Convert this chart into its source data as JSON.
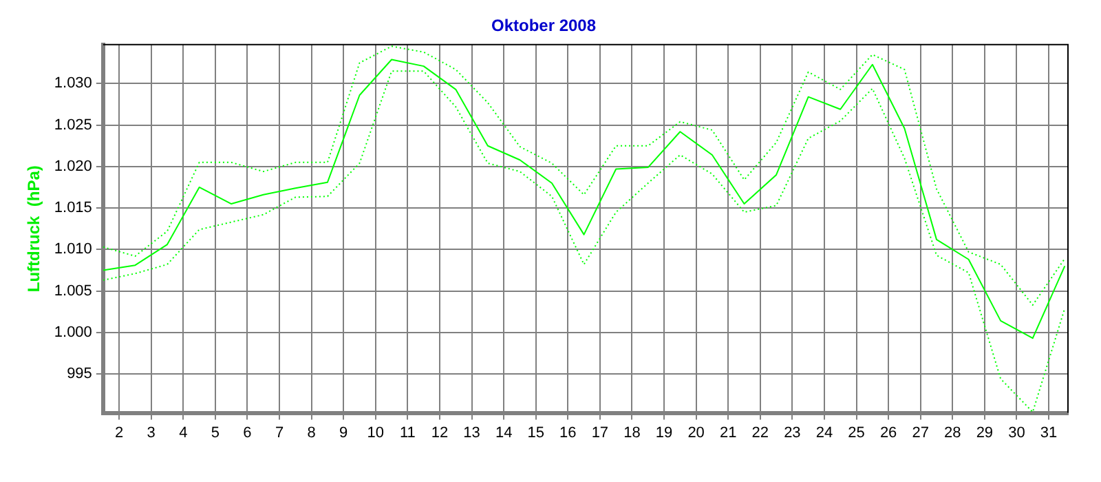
{
  "chart_data": {
    "type": "line",
    "title": "Oktober 2008",
    "ylabel": "Luftdruck  (hPa)",
    "x": [
      1.5,
      2.5,
      3.5,
      4.5,
      5.5,
      6.5,
      7.5,
      8.5,
      9.5,
      10.5,
      11.5,
      12.5,
      13.5,
      14.5,
      15.5,
      16.5,
      17.5,
      18.5,
      19.5,
      20.5,
      21.5,
      22.5,
      23.5,
      24.5,
      25.5,
      26.5,
      27.5,
      28.5,
      29.5,
      30.5,
      31.5
    ],
    "series": [
      {
        "color": "#00ff00",
        "line_style": "solid",
        "values": [
          1007.5,
          1008.1,
          1010.6,
          1017.5,
          1015.5,
          1016.6,
          1017.4,
          1018.1,
          1028.6,
          1032.9,
          1032.1,
          1029.3,
          1022.5,
          1020.8,
          1018.0,
          1011.8,
          1019.7,
          1019.9,
          1024.2,
          1021.4,
          1015.5,
          1019.0,
          1028.4,
          1026.9,
          1032.3,
          1024.6,
          1011.2,
          1008.8,
          1001.4,
          999.3,
          1008.0
        ]
      },
      {
        "color": "#00ff00",
        "line_style": "dotted",
        "values": [
          1010.3,
          1009.2,
          1012.2,
          1020.5,
          1020.5,
          1019.4,
          1020.5,
          1020.5,
          1032.5,
          1034.5,
          1033.8,
          1031.7,
          1027.7,
          1022.4,
          1020.4,
          1016.6,
          1022.5,
          1022.5,
          1025.4,
          1024.4,
          1018.4,
          1022.9,
          1031.4,
          1029.3,
          1033.5,
          1031.7,
          1017.3,
          1009.7,
          1008.2,
          1003.3,
          1008.9
        ]
      },
      {
        "color": "#00ff00",
        "line_style": "dotted",
        "values": [
          1006.3,
          1007.1,
          1008.2,
          1012.4,
          1013.3,
          1014.2,
          1016.3,
          1016.4,
          1020.4,
          1031.5,
          1031.5,
          1027.2,
          1020.4,
          1019.4,
          1016.4,
          1008.2,
          1014.5,
          1018.0,
          1021.4,
          1019.1,
          1014.5,
          1015.3,
          1023.4,
          1025.5,
          1029.4,
          1021.0,
          1009.3,
          1007.2,
          994.4,
          990.4,
          1002.9
        ]
      }
    ],
    "xlim": [
      1.5,
      31.6
    ],
    "xticks": [
      2,
      3,
      4,
      5,
      6,
      7,
      8,
      9,
      10,
      11,
      12,
      13,
      14,
      15,
      16,
      17,
      18,
      19,
      20,
      21,
      22,
      23,
      24,
      25,
      26,
      27,
      28,
      29,
      30,
      31
    ],
    "ylim": [
      990.3,
      1034.7
    ],
    "yticks": [
      {
        "value": 995,
        "label": "995"
      },
      {
        "value": 1000,
        "label": "1.000"
      },
      {
        "value": 1005,
        "label": "1.005"
      },
      {
        "value": 1010,
        "label": "1.010"
      },
      {
        "value": 1015,
        "label": "1.015"
      },
      {
        "value": 1020,
        "label": "1.020"
      },
      {
        "value": 1025,
        "label": "1.025"
      },
      {
        "value": 1030,
        "label": "1.030"
      }
    ],
    "grid": true,
    "legend": false,
    "marker": "none"
  }
}
